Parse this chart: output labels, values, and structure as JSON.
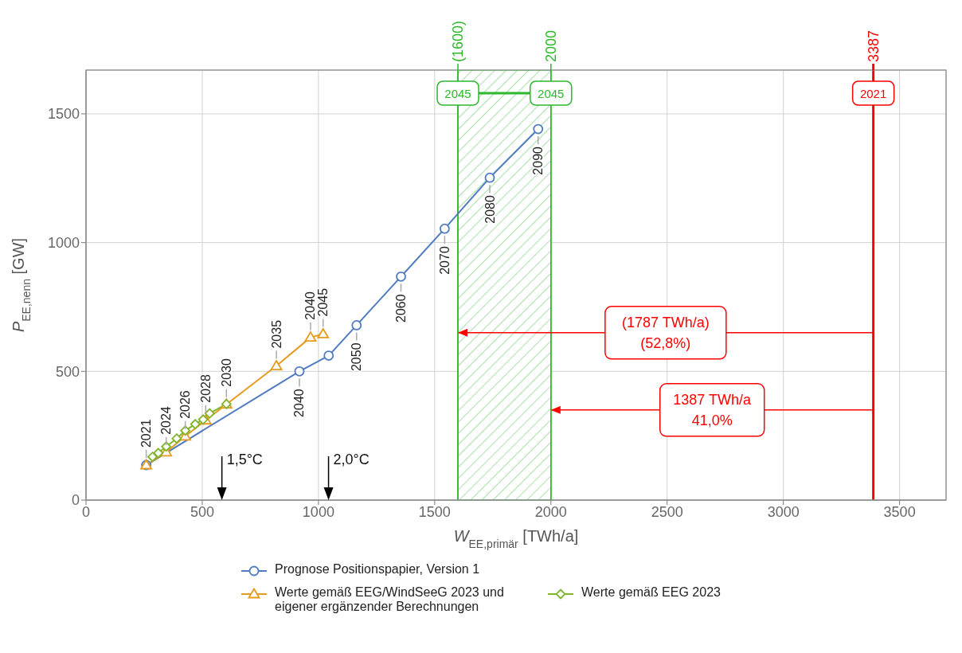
{
  "chart_data": {
    "type": "line",
    "xlabel": "W$_{EE,primär}$ [TWh/a]",
    "ylabel": "P$_{EE,nenn}$ [GW]",
    "xlim": [
      0,
      3700
    ],
    "xticks": [
      0,
      500,
      1000,
      1500,
      2000,
      2500,
      3000,
      3500
    ],
    "ylim": [
      0,
      1670
    ],
    "yticks": [
      0,
      500,
      1000,
      1500
    ],
    "grid": true,
    "legend": "bottom",
    "line_style": "solid",
    "series": [
      {
        "name": "Prognose Positionspapier, Version 1",
        "color": "#4f7cc0",
        "marker": "circle",
        "x": [
          259,
          918,
          1044,
          1164,
          1355,
          1543,
          1737,
          1945
        ],
        "values": [
          136,
          500,
          561,
          679,
          868,
          1054,
          1252,
          1441
        ]
      },
      {
        "name": "Werte gemäß EEG/WindSeeG 2023 und eigener ergänzender Berechnungen",
        "color": "#e69a1e",
        "marker": "triangle",
        "x": [
          259,
          345,
          427,
          515,
          604,
          819,
          966,
          1020
        ],
        "values": [
          136,
          186,
          248,
          310,
          372,
          521,
          632,
          645
        ]
      },
      {
        "name": "Werte gemäß EEG 2023",
        "color": "#7fb52b",
        "marker": "diamond",
        "x": [
          286,
          311,
          345,
          390,
          427,
          470,
          504,
          532,
          604
        ],
        "values": [
          168,
          183,
          208,
          239,
          270,
          295,
          313,
          337,
          373
        ]
      }
    ],
    "bands": [
      {
        "axis": "x",
        "from": 1600,
        "to": 2000,
        "color": "#2db82d"
      }
    ],
    "ref_lines": [
      {
        "axis": "x",
        "value": 1600,
        "label": "(1600)",
        "color": "#2db82d"
      },
      {
        "axis": "x",
        "value": 2000,
        "label": "2000",
        "color": "#2db82d"
      },
      {
        "axis": "x",
        "value": 3387,
        "label": "3387",
        "color": "#ff0000"
      }
    ],
    "annotations": [
      "1,5°C",
      "2,0°C",
      "(1787 TWh/a)\n(52,8%)",
      "1387 TWh/a\n41,0%",
      {
        "text": "2045",
        "x": 1600,
        "y": 1580
      },
      {
        "text": "2045",
        "x": 2000,
        "y": 1580
      },
      {
        "text": "2021",
        "x": 3387,
        "y": 1580
      },
      {
        "text": "2040",
        "x": 918,
        "y": 500
      },
      {
        "text": "2050",
        "x": 1164,
        "y": 679
      },
      {
        "text": "2060",
        "x": 1355,
        "y": 868
      },
      {
        "text": "2070",
        "x": 1543,
        "y": 1054
      },
      {
        "text": "2080",
        "x": 1737,
        "y": 1252
      },
      {
        "text": "2090",
        "x": 1945,
        "y": 1441
      },
      {
        "text": "2021",
        "x": 259,
        "y": 136
      },
      {
        "text": "2024",
        "x": 345,
        "y": 186
      },
      {
        "text": "2026",
        "x": 427,
        "y": 248
      },
      {
        "text": "2028",
        "x": 515,
        "y": 310
      },
      {
        "text": "2030",
        "x": 604,
        "y": 372
      },
      {
        "text": "2035",
        "x": 819,
        "y": 521
      },
      {
        "text": "2040",
        "x": 966,
        "y": 632
      },
      {
        "text": "2045",
        "x": 1020,
        "y": 645
      }
    ]
  }
}
